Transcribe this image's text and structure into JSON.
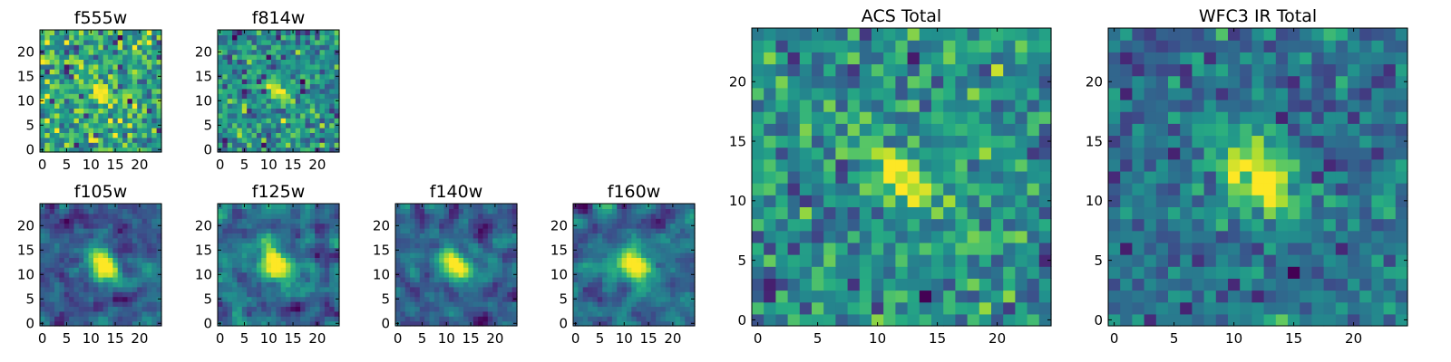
{
  "chart_data": [
    {
      "type": "heatmap",
      "title": "f555w",
      "grid_size": [
        25,
        25
      ],
      "xlim": [
        -0.5,
        24.5
      ],
      "ylim": [
        -0.5,
        24.5
      ],
      "xticks": [
        0,
        5,
        10,
        15,
        20
      ],
      "yticks": [
        0,
        5,
        10,
        15,
        20
      ],
      "source_center": [
        12,
        12
      ],
      "source_sigma": [
        2.0,
        1.2
      ],
      "source_peak": 1.0,
      "noise": 0.32,
      "smooth": 0,
      "angle_deg": -40,
      "colormap": "viridis",
      "grid": false,
      "seed": 11
    },
    {
      "type": "heatmap",
      "title": "f814w",
      "grid_size": [
        25,
        25
      ],
      "xlim": [
        -0.5,
        24.5
      ],
      "ylim": [
        -0.5,
        24.5
      ],
      "xticks": [
        0,
        5,
        10,
        15,
        20
      ],
      "yticks": [
        0,
        5,
        10,
        15,
        20
      ],
      "source_center": [
        12,
        12
      ],
      "source_sigma": [
        2.0,
        1.2
      ],
      "source_peak": 1.0,
      "noise": 0.32,
      "smooth": 0,
      "angle_deg": -40,
      "colormap": "viridis",
      "grid": false,
      "seed": 23
    },
    {
      "type": "heatmap",
      "title": "f105w",
      "grid_size": [
        25,
        25
      ],
      "xlim": [
        -0.5,
        24.5
      ],
      "ylim": [
        -0.5,
        24.5
      ],
      "xticks": [
        0,
        5,
        10,
        15,
        20
      ],
      "yticks": [
        0,
        5,
        10,
        15,
        20
      ],
      "source_center": [
        13,
        12
      ],
      "source_sigma": [
        2.4,
        1.5
      ],
      "source_peak": 1.0,
      "noise": 0.28,
      "smooth": 1,
      "angle_deg": -55,
      "colormap": "viridis",
      "grid": false,
      "seed": 37
    },
    {
      "type": "heatmap",
      "title": "f125w",
      "grid_size": [
        25,
        25
      ],
      "xlim": [
        -0.5,
        24.5
      ],
      "ylim": [
        -0.5,
        24.5
      ],
      "xticks": [
        0,
        5,
        10,
        15,
        20
      ],
      "yticks": [
        0,
        5,
        10,
        15,
        20
      ],
      "source_center": [
        12,
        12
      ],
      "source_sigma": [
        2.4,
        1.5
      ],
      "source_peak": 1.0,
      "noise": 0.28,
      "smooth": 1,
      "angle_deg": -45,
      "colormap": "viridis",
      "grid": false,
      "seed": 41
    },
    {
      "type": "heatmap",
      "title": "f140w",
      "grid_size": [
        25,
        25
      ],
      "xlim": [
        -0.5,
        24.5
      ],
      "ylim": [
        -0.5,
        24.5
      ],
      "xticks": [
        0,
        5,
        10,
        15,
        20
      ],
      "yticks": [
        0,
        5,
        10,
        15,
        20
      ],
      "source_center": [
        12,
        12
      ],
      "source_sigma": [
        2.4,
        1.6
      ],
      "source_peak": 1.0,
      "noise": 0.28,
      "smooth": 1,
      "angle_deg": -45,
      "colormap": "viridis",
      "grid": false,
      "seed": 53
    },
    {
      "type": "heatmap",
      "title": "f160w",
      "grid_size": [
        25,
        25
      ],
      "xlim": [
        -0.5,
        24.5
      ],
      "ylim": [
        -0.5,
        24.5
      ],
      "xticks": [
        0,
        5,
        10,
        15,
        20
      ],
      "yticks": [
        0,
        5,
        10,
        15,
        20
      ],
      "source_center": [
        12,
        12
      ],
      "source_sigma": [
        2.4,
        1.7
      ],
      "source_peak": 1.0,
      "noise": 0.28,
      "smooth": 1,
      "angle_deg": -45,
      "colormap": "viridis",
      "grid": false,
      "seed": 67
    },
    {
      "type": "heatmap",
      "title": "ACS Total",
      "grid_size": [
        25,
        25
      ],
      "xlim": [
        -0.5,
        24.5
      ],
      "ylim": [
        -0.5,
        24.5
      ],
      "xticks": [
        0,
        5,
        10,
        15,
        20
      ],
      "yticks": [
        0,
        5,
        10,
        15,
        20
      ],
      "source_center": [
        12,
        12
      ],
      "source_sigma": [
        2.2,
        1.4
      ],
      "source_peak": 1.0,
      "noise": 0.27,
      "smooth": 0,
      "angle_deg": -45,
      "colormap": "viridis",
      "grid": false,
      "seed": 79
    },
    {
      "type": "heatmap",
      "title": "WFC3 IR Total",
      "grid_size": [
        25,
        25
      ],
      "xlim": [
        -0.5,
        24.5
      ],
      "ylim": [
        -0.5,
        24.5
      ],
      "xticks": [
        0,
        5,
        10,
        15,
        20
      ],
      "yticks": [
        0,
        5,
        10,
        15,
        20
      ],
      "source_center": [
        12,
        12
      ],
      "source_sigma": [
        3.0,
        2.0
      ],
      "source_peak": 1.0,
      "noise": 0.2,
      "smooth": 0,
      "angle_deg": -50,
      "colormap": "viridis",
      "grid": false,
      "seed": 97
    }
  ]
}
